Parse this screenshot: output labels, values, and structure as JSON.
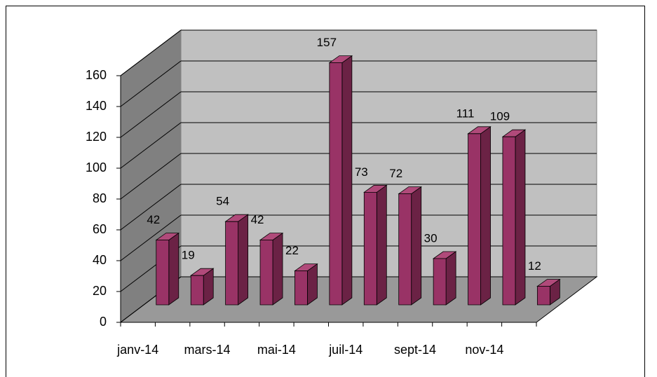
{
  "chart_data": {
    "type": "bar3d",
    "categories": [
      "janv-14",
      null,
      "mars-14",
      null,
      "mai-14",
      null,
      "juil-14",
      null,
      "sept-14",
      null,
      "nov-14",
      null
    ],
    "values": [
      42,
      19,
      54,
      42,
      22,
      157,
      73,
      72,
      30,
      111,
      109,
      12
    ],
    "color": "#993366",
    "ylim": [
      0,
      160
    ],
    "yticks": [
      0,
      20,
      40,
      60,
      80,
      100,
      120,
      140,
      160
    ],
    "grid": true
  }
}
